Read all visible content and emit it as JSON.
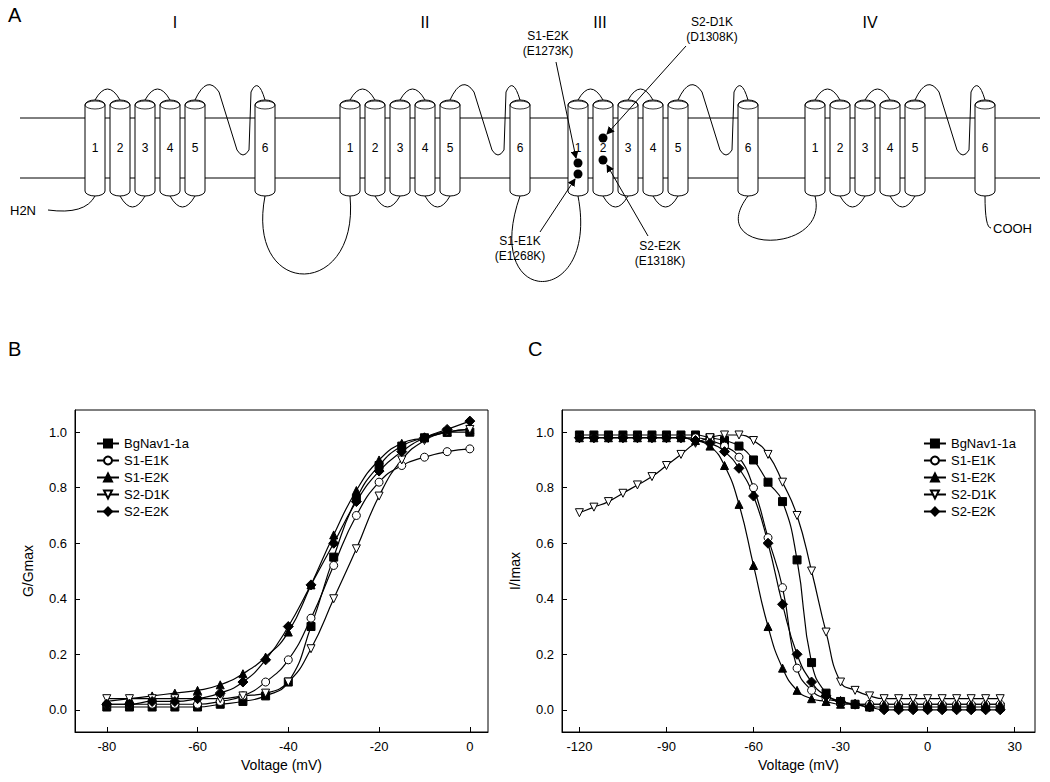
{
  "diagram": {
    "panel": "A",
    "domains": [
      "I",
      "II",
      "III",
      "IV"
    ],
    "segments": [
      "1",
      "2",
      "3",
      "4",
      "5",
      "6"
    ],
    "n_terminus": "H2N",
    "c_terminus": "COOH",
    "mutations": [
      {
        "name": "S1-E2K",
        "residue": "(E1273K)"
      },
      {
        "name": "S2-D1K",
        "residue": "(D1308K)"
      },
      {
        "name": "S1-E1K",
        "residue": "(E1268K)"
      },
      {
        "name": "S2-E2K",
        "residue": "(E1318K)"
      }
    ]
  },
  "chart_data": [
    {
      "panel": "B",
      "type": "line",
      "x_label": "Voltage (mV)",
      "y_label": "G/Gmax",
      "xlim": [
        -87,
        4
      ],
      "xticks": [
        -80,
        -60,
        -40,
        -20,
        0
      ],
      "ylim": [
        -0.08,
        1.08
      ],
      "yticks": [
        {
          "value": 0,
          "label": "0.0"
        },
        0.2,
        0.4,
        0.6,
        0.8,
        {
          "value": 1,
          "label": "1.0"
        }
      ],
      "grid": false,
      "legend": "upper left",
      "line_style": "solid",
      "x": [
        -80,
        -75,
        -70,
        -65,
        -60,
        -55,
        -50,
        -45,
        -40,
        -35,
        -30,
        -25,
        -20,
        -15,
        -10,
        -5,
        0
      ],
      "series": [
        {
          "name": "BgNav1-1a",
          "color": "#000000",
          "marker": "square",
          "values": [
            0.01,
            0.01,
            0.01,
            0.01,
            0.01,
            0.02,
            0.03,
            0.05,
            0.1,
            0.3,
            0.55,
            0.76,
            0.88,
            0.95,
            0.98,
            1.0,
            1.0
          ]
        },
        {
          "name": "S1-E1K",
          "color": "#000000",
          "marker": "circle-open",
          "values": [
            0.02,
            0.02,
            0.02,
            0.02,
            0.02,
            0.03,
            0.05,
            0.1,
            0.18,
            0.33,
            0.52,
            0.7,
            0.82,
            0.88,
            0.91,
            0.93,
            0.94
          ]
        },
        {
          "name": "S1-E2K",
          "color": "#000000",
          "marker": "triangle",
          "values": [
            0.03,
            0.04,
            0.05,
            0.06,
            0.07,
            0.09,
            0.13,
            0.19,
            0.28,
            0.45,
            0.63,
            0.79,
            0.9,
            0.96,
            0.98,
            1.0,
            1.01
          ]
        },
        {
          "name": "S2-D1K",
          "color": "#000000",
          "marker": "triangle-down-open",
          "values": [
            0.04,
            0.04,
            0.04,
            0.04,
            0.04,
            0.04,
            0.05,
            0.06,
            0.1,
            0.22,
            0.4,
            0.58,
            0.77,
            0.9,
            0.97,
            1.0,
            1.01
          ]
        },
        {
          "name": "S2-E2K",
          "color": "#000000",
          "marker": "diamond",
          "values": [
            0.02,
            0.02,
            0.03,
            0.03,
            0.04,
            0.06,
            0.1,
            0.18,
            0.3,
            0.45,
            0.6,
            0.75,
            0.86,
            0.93,
            0.98,
            1.01,
            1.04
          ]
        }
      ]
    },
    {
      "panel": "C",
      "type": "line",
      "x_label": "Voltage (mV)",
      "y_label": "I/Imax",
      "xlim": [
        -126,
        37
      ],
      "xticks": [
        -120,
        -90,
        -60,
        -30,
        0,
        30
      ],
      "ylim": [
        -0.08,
        1.08
      ],
      "yticks": [
        {
          "value": 0,
          "label": "0.0"
        },
        0.2,
        0.4,
        0.6,
        0.8,
        {
          "value": 1,
          "label": "1.0"
        }
      ],
      "grid": false,
      "legend": "upper right",
      "line_style": "solid",
      "x": [
        -120,
        -115,
        -110,
        -105,
        -100,
        -95,
        -90,
        -85,
        -80,
        -75,
        -70,
        -65,
        -60,
        -55,
        -50,
        -45,
        -40,
        -35,
        -30,
        -25,
        -20,
        -15,
        -10,
        -5,
        0,
        5,
        10,
        15,
        20,
        25
      ],
      "series": [
        {
          "name": "BgNav1-1a",
          "color": "#000000",
          "marker": "square",
          "values": [
            0.99,
            0.99,
            0.99,
            0.99,
            0.99,
            0.99,
            0.99,
            0.99,
            0.99,
            0.98,
            0.97,
            0.95,
            0.9,
            0.82,
            0.75,
            0.54,
            0.17,
            0.06,
            0.03,
            0.02,
            0.01,
            0.01,
            0.01,
            0.01,
            0.01,
            0.01,
            0.01,
            0.01,
            0.01,
            0.01
          ]
        },
        {
          "name": "S1-E1K",
          "color": "#000000",
          "marker": "circle-open",
          "values": [
            0.98,
            0.98,
            0.98,
            0.98,
            0.98,
            0.98,
            0.98,
            0.98,
            0.98,
            0.97,
            0.95,
            0.91,
            0.8,
            0.62,
            0.44,
            0.15,
            0.07,
            0.04,
            0.03,
            0.02,
            0.02,
            0.02,
            0.02,
            0.02,
            0.02,
            0.02,
            0.02,
            0.02,
            0.02,
            0.02
          ]
        },
        {
          "name": "S1-E2K",
          "color": "#000000",
          "marker": "triangle",
          "values": [
            0.98,
            0.98,
            0.98,
            0.98,
            0.98,
            0.98,
            0.98,
            0.98,
            0.97,
            0.95,
            0.88,
            0.74,
            0.52,
            0.3,
            0.15,
            0.07,
            0.04,
            0.03,
            0.02,
            0.02,
            0.02,
            0.02,
            0.02,
            0.02,
            0.02,
            0.02,
            0.02,
            0.02,
            0.02,
            0.02
          ]
        },
        {
          "name": "S2-D1K",
          "color": "#000000",
          "marker": "triangle-down-open",
          "values": [
            0.71,
            0.73,
            0.75,
            0.78,
            0.81,
            0.84,
            0.88,
            0.92,
            0.96,
            0.98,
            0.99,
            0.99,
            0.97,
            0.92,
            0.82,
            0.7,
            0.5,
            0.28,
            0.1,
            0.07,
            0.05,
            0.04,
            0.04,
            0.04,
            0.04,
            0.04,
            0.04,
            0.04,
            0.04,
            0.04
          ]
        },
        {
          "name": "S2-E2K",
          "color": "#000000",
          "marker": "diamond",
          "values": [
            0.98,
            0.98,
            0.98,
            0.98,
            0.98,
            0.98,
            0.98,
            0.98,
            0.97,
            0.96,
            0.93,
            0.87,
            0.77,
            0.6,
            0.38,
            0.2,
            0.1,
            0.05,
            0.03,
            0.02,
            0.01,
            0.0,
            0.0,
            0.0,
            0.0,
            0.0,
            0.0,
            0.0,
            0.0,
            0.0
          ]
        }
      ]
    }
  ]
}
